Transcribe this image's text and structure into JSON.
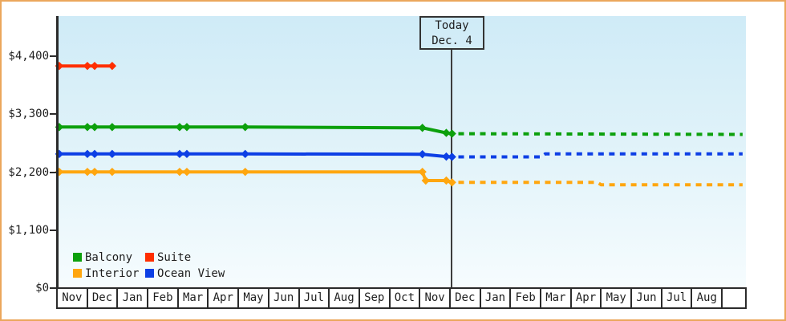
{
  "frame": {
    "border_color": "#EBA75C",
    "background": "#FFFFFF"
  },
  "today_marker": {
    "line1": "Today",
    "line2": "Dec. 4"
  },
  "legend": {
    "items": [
      {
        "label": "Balcony",
        "color": "#0CA00C"
      },
      {
        "label": "Suite",
        "color": "#FF2E00"
      },
      {
        "label": "Interior",
        "color": "#FFA60F"
      },
      {
        "label": "Ocean View",
        "color": "#0D3FE5"
      }
    ]
  },
  "chart_data": {
    "type": "line",
    "title": "",
    "grid": false,
    "legend_position": "bottom-left",
    "y_axis": {
      "min": 0,
      "max": 4400,
      "ticks": [
        {
          "label": "$0",
          "value": 0
        },
        {
          "label": "$1,100",
          "value": 1100
        },
        {
          "label": "$2,200",
          "value": 2200
        },
        {
          "label": "$3,300",
          "value": 3300
        },
        {
          "label": "$4,400",
          "value": 4400
        }
      ]
    },
    "x_axis": {
      "unit": "month",
      "labels": [
        "Nov",
        "Dec",
        "Jan",
        "Feb",
        "Mar",
        "Apr",
        "May",
        "Jun",
        "Jul",
        "Aug",
        "Sep",
        "Oct",
        "Nov",
        "Dec",
        "Jan",
        "Feb",
        "Mar",
        "Apr",
        "May",
        "Jun",
        "Jul",
        "Aug"
      ]
    },
    "today": {
      "month_offset": 13.04,
      "label": "Today Dec. 4"
    },
    "series": [
      {
        "name": "Balcony",
        "color": "#0CA00C",
        "solid_points": [
          [
            0.05,
            3055
          ],
          [
            0.98,
            3055
          ],
          [
            1.22,
            3055
          ],
          [
            1.8,
            3055
          ],
          [
            4.03,
            3055
          ],
          [
            4.27,
            3055
          ],
          [
            6.2,
            3055
          ],
          [
            12.06,
            3040
          ],
          [
            12.85,
            2945
          ],
          [
            13.04,
            2930
          ]
        ],
        "dotted_points": [
          [
            13.25,
            2930
          ],
          [
            22.65,
            2915
          ]
        ]
      },
      {
        "name": "Suite",
        "color": "#FF2E00",
        "solid_points": [
          [
            0.05,
            4215
          ],
          [
            0.98,
            4215
          ],
          [
            1.22,
            4215
          ],
          [
            1.8,
            4215
          ]
        ],
        "dotted_points": []
      },
      {
        "name": "Interior",
        "color": "#FFA60F",
        "solid_points": [
          [
            0.05,
            2205
          ],
          [
            0.98,
            2205
          ],
          [
            1.22,
            2205
          ],
          [
            1.8,
            2205
          ],
          [
            4.03,
            2205
          ],
          [
            4.27,
            2205
          ],
          [
            6.2,
            2205
          ],
          [
            12.06,
            2205
          ],
          [
            12.17,
            2040
          ],
          [
            12.85,
            2040
          ],
          [
            13.04,
            2005
          ]
        ],
        "dotted_points": [
          [
            13.25,
            2005
          ],
          [
            17.85,
            2005
          ],
          [
            17.97,
            1960
          ],
          [
            22.65,
            1960
          ]
        ]
      },
      {
        "name": "Ocean View",
        "color": "#0D3FE5",
        "solid_points": [
          [
            0.05,
            2545
          ],
          [
            0.98,
            2545
          ],
          [
            1.22,
            2545
          ],
          [
            1.8,
            2545
          ],
          [
            4.03,
            2545
          ],
          [
            4.27,
            2545
          ],
          [
            6.2,
            2545
          ],
          [
            12.06,
            2540
          ],
          [
            12.85,
            2495
          ],
          [
            13.04,
            2490
          ]
        ],
        "dotted_points": [
          [
            13.25,
            2490
          ],
          [
            15.98,
            2490
          ],
          [
            16.12,
            2545
          ],
          [
            22.65,
            2545
          ]
        ]
      }
    ]
  }
}
